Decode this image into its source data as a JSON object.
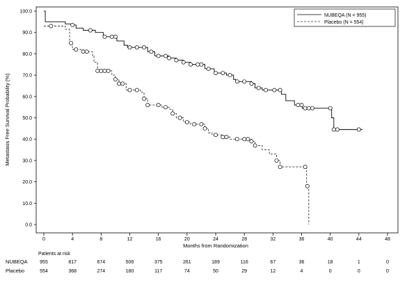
{
  "chart_data": {
    "type": "line",
    "title": "",
    "xlabel": "Months from Randomization",
    "ylabel": "Metastasis Free Survival Probability (%)",
    "xlim": [
      0,
      48
    ],
    "ylim": [
      0,
      100
    ],
    "x_ticks": [
      "0",
      "4",
      "8",
      "12",
      "16",
      "20",
      "24",
      "28",
      "32",
      "36",
      "40",
      "44",
      "48"
    ],
    "y_ticks": [
      "0.0",
      "10.0",
      "20.0",
      "30.0",
      "40.0",
      "50.0",
      "60.0",
      "70.0",
      "80.0",
      "90.0",
      "100.0"
    ],
    "legend_position": "top-right",
    "grid": false,
    "series": [
      {
        "name": "NUBEQA (N = 955)",
        "style": "solid",
        "color": "#000000",
        "steps": [
          [
            0,
            100
          ],
          [
            0.2,
            95
          ],
          [
            3,
            94
          ],
          [
            3.8,
            93.5
          ],
          [
            4.5,
            92
          ],
          [
            5.5,
            91
          ],
          [
            7.2,
            90
          ],
          [
            8.3,
            88
          ],
          [
            10.2,
            86
          ],
          [
            11.2,
            84
          ],
          [
            11.7,
            83
          ],
          [
            14.5,
            81
          ],
          [
            15.5,
            79
          ],
          [
            17.5,
            78
          ],
          [
            18.5,
            77
          ],
          [
            19.5,
            76
          ],
          [
            20.5,
            75
          ],
          [
            22.5,
            73
          ],
          [
            23.8,
            71
          ],
          [
            25.5,
            70
          ],
          [
            26.5,
            68
          ],
          [
            26.8,
            67
          ],
          [
            29,
            66
          ],
          [
            29.5,
            64
          ],
          [
            30.5,
            63
          ],
          [
            33.2,
            61
          ],
          [
            33.8,
            58
          ],
          [
            35,
            56
          ],
          [
            36.1,
            54.5
          ],
          [
            40.2,
            50
          ],
          [
            40.5,
            44.5
          ],
          [
            44.5,
            44.5
          ]
        ],
        "censor": [
          4,
          6.5,
          8.5,
          9.5,
          10,
          12,
          13,
          14,
          15,
          16,
          17,
          17.5,
          18.5,
          19.5,
          20.5,
          21.5,
          22,
          23,
          24,
          25,
          26,
          27,
          28,
          29,
          30,
          31,
          32.2,
          33,
          35.5,
          36,
          36.5,
          37,
          37.5,
          40,
          40.5,
          41,
          44
        ]
      },
      {
        "name": "Placebo (N = 554)",
        "style": "dashed",
        "color": "#333333",
        "steps": [
          [
            0,
            93
          ],
          [
            3,
            91.5
          ],
          [
            3.6,
            85
          ],
          [
            4,
            82
          ],
          [
            5.5,
            81
          ],
          [
            6.8,
            79
          ],
          [
            7,
            76
          ],
          [
            7.5,
            72
          ],
          [
            9.5,
            70
          ],
          [
            10,
            68
          ],
          [
            10.5,
            66
          ],
          [
            11.5,
            63
          ],
          [
            13.5,
            62
          ],
          [
            14,
            59
          ],
          [
            14.5,
            56
          ],
          [
            16.5,
            55
          ],
          [
            17.5,
            54
          ],
          [
            18,
            52
          ],
          [
            18.5,
            50
          ],
          [
            19.5,
            48
          ],
          [
            20.5,
            47
          ],
          [
            22.5,
            45
          ],
          [
            23,
            43
          ],
          [
            23.5,
            42
          ],
          [
            25,
            41
          ],
          [
            26,
            40
          ],
          [
            29,
            39
          ],
          [
            29.5,
            37
          ],
          [
            30.5,
            35
          ],
          [
            31.5,
            33
          ],
          [
            32.5,
            30
          ],
          [
            33,
            27
          ],
          [
            36.7,
            18
          ],
          [
            37,
            0
          ]
        ],
        "censor": [
          1,
          3.8,
          4.5,
          5.5,
          6,
          7.5,
          8,
          8.5,
          9,
          10,
          10.5,
          11,
          12,
          13,
          14,
          14.5,
          16,
          17,
          18,
          19,
          20,
          21,
          22,
          22.5,
          24,
          25,
          25.5,
          27,
          28,
          28.5,
          29,
          29.5,
          32.5,
          33,
          36.5,
          36.8
        ]
      }
    ]
  },
  "risk_table": {
    "header": "Patients at risk",
    "rows": [
      {
        "label": "NUBEQA",
        "values": [
          "955",
          "817",
          "674",
          "506",
          "375",
          "261",
          "189",
          "116",
          "67",
          "36",
          "18",
          "1",
          "0"
        ]
      },
      {
        "label": "Placebo",
        "values": [
          "554",
          "368",
          "274",
          "180",
          "117",
          "74",
          "50",
          "29",
          "12",
          "4",
          "0",
          "0",
          "0"
        ]
      }
    ]
  }
}
